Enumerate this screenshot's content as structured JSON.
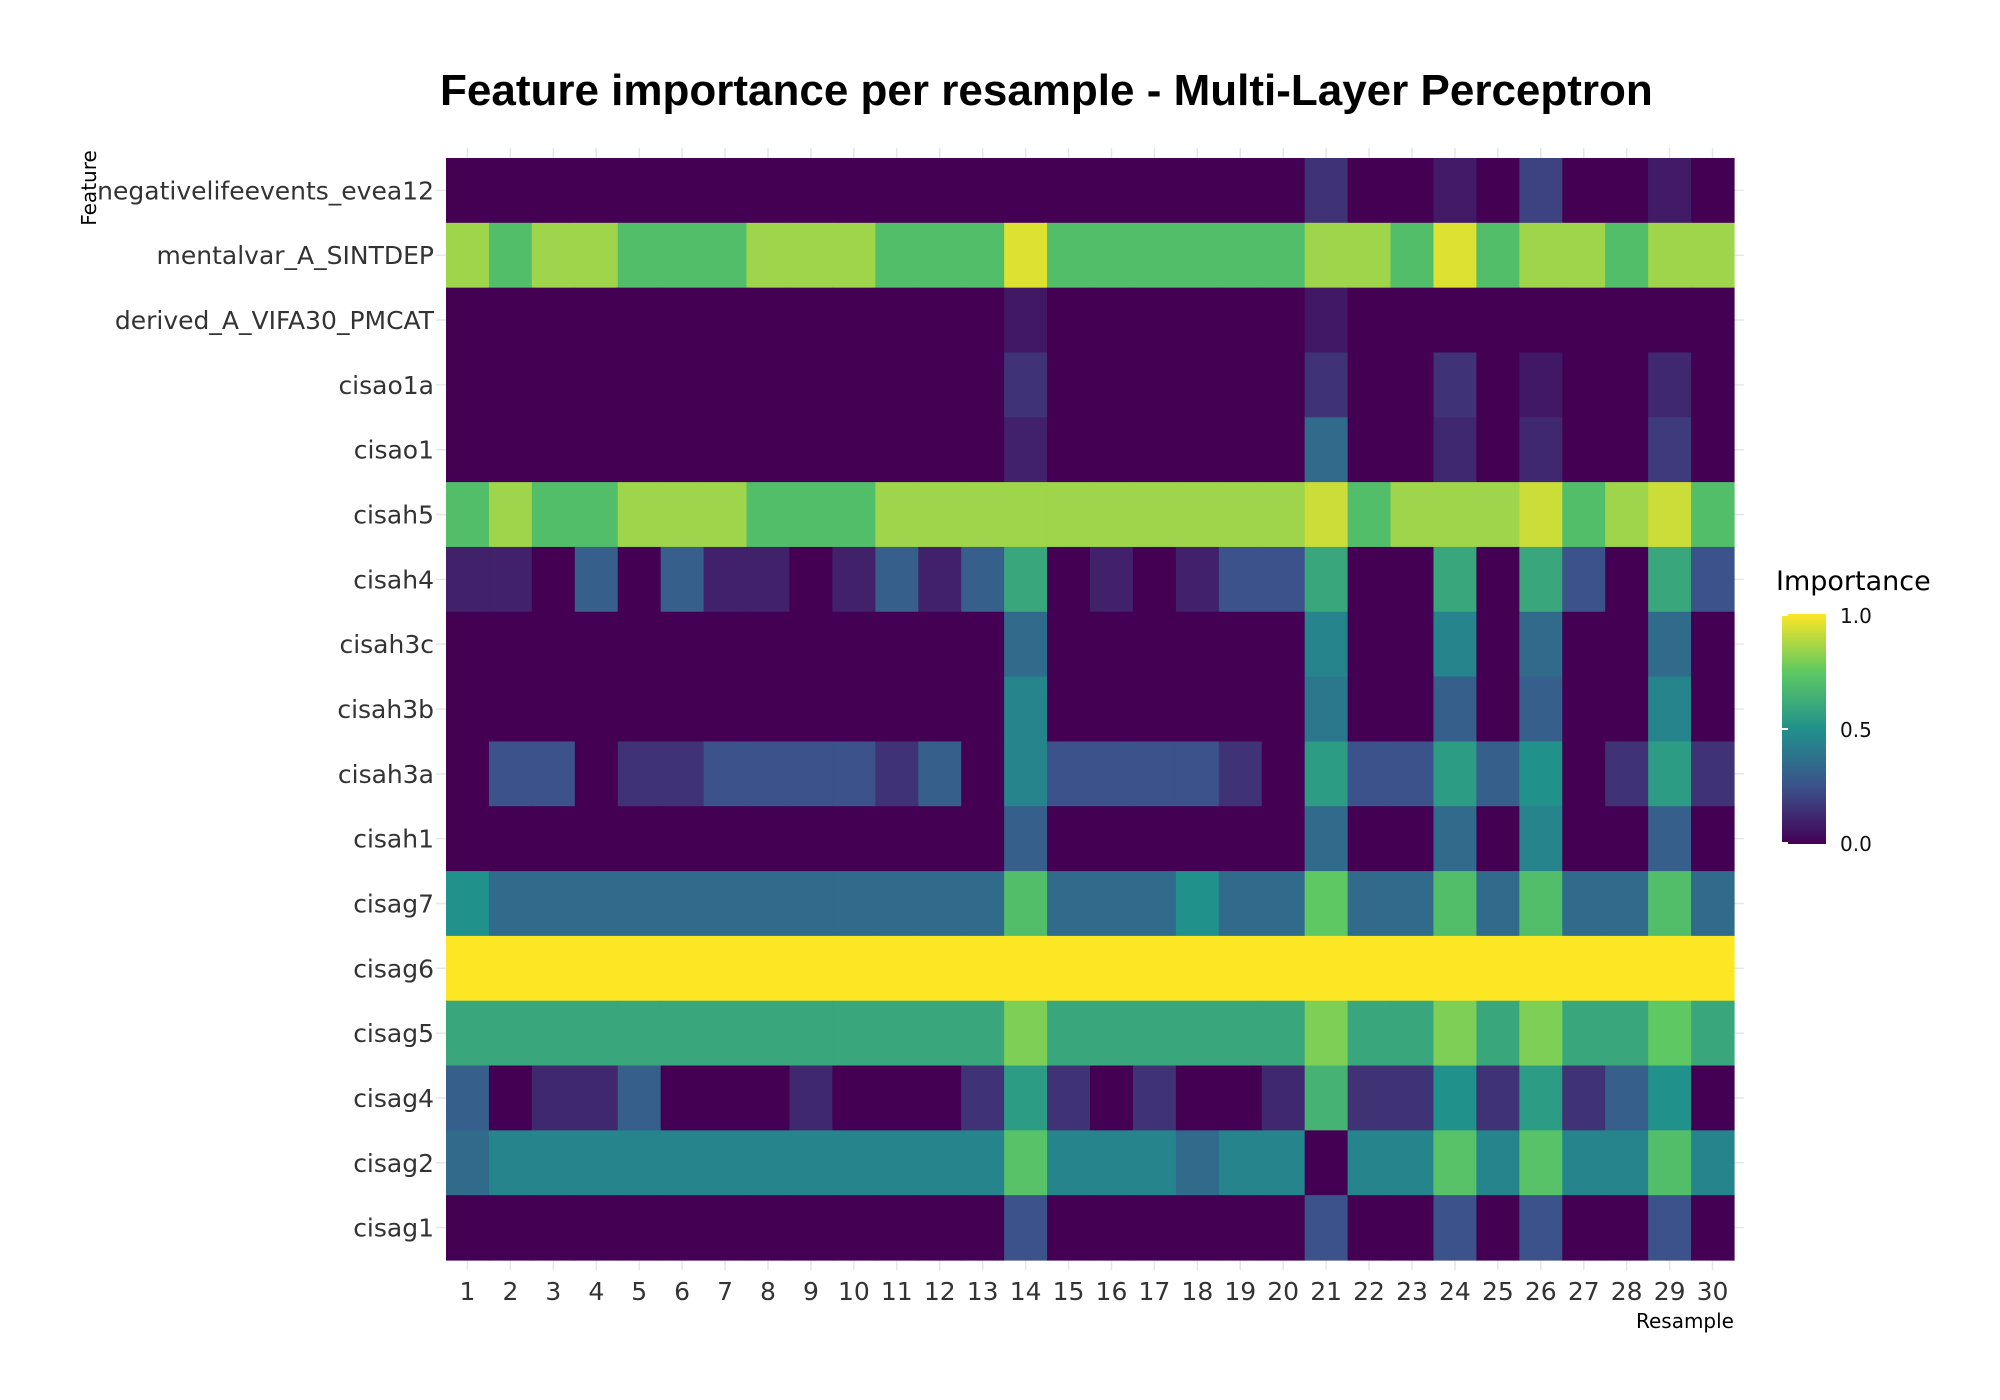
{
  "chart_data": {
    "type": "heatmap",
    "title": "Feature importance per resample - Multi-Layer Perceptron",
    "xlabel": "Resample",
    "ylabel": "Feature",
    "x": [
      "1",
      "2",
      "3",
      "4",
      "5",
      "6",
      "7",
      "8",
      "9",
      "10",
      "11",
      "12",
      "13",
      "14",
      "15",
      "16",
      "17",
      "18",
      "19",
      "20",
      "21",
      "22",
      "23",
      "24",
      "25",
      "26",
      "27",
      "28",
      "29",
      "30"
    ],
    "y": [
      "negativelifeevents_evea12",
      "mentalvar_A_SINTDEP",
      "derived_A_VIFA30_PMCAT",
      "cisao1a",
      "cisao1",
      "cisah5",
      "cisah4",
      "cisah3c",
      "cisah3b",
      "cisah3a",
      "cisah1",
      "cisag7",
      "cisag6",
      "cisag5",
      "cisag4",
      "cisag2",
      "cisag1"
    ],
    "values": [
      [
        0,
        0,
        0,
        0,
        0,
        0,
        0,
        0,
        0,
        0,
        0,
        0,
        0,
        0,
        0,
        0,
        0,
        0,
        0,
        0,
        0.15,
        0,
        0,
        0.08,
        0,
        0.2,
        0,
        0,
        0.08,
        0
      ],
      [
        0.85,
        0.7,
        0.85,
        0.85,
        0.7,
        0.7,
        0.7,
        0.85,
        0.85,
        0.85,
        0.7,
        0.7,
        0.7,
        0.95,
        0.7,
        0.7,
        0.7,
        0.7,
        0.7,
        0.7,
        0.85,
        0.85,
        0.7,
        0.95,
        0.7,
        0.85,
        0.85,
        0.7,
        0.85,
        0.85
      ],
      [
        0,
        0,
        0,
        0,
        0,
        0,
        0,
        0,
        0,
        0,
        0,
        0,
        0,
        0.07,
        0,
        0,
        0,
        0,
        0,
        0,
        0.07,
        0,
        0,
        0,
        0,
        0,
        0,
        0,
        0,
        0
      ],
      [
        0,
        0,
        0,
        0,
        0,
        0,
        0,
        0,
        0,
        0,
        0,
        0,
        0,
        0.15,
        0,
        0,
        0,
        0,
        0,
        0,
        0.15,
        0,
        0,
        0.15,
        0,
        0.07,
        0,
        0,
        0.12,
        0
      ],
      [
        0,
        0,
        0,
        0,
        0,
        0,
        0,
        0,
        0,
        0,
        0,
        0,
        0,
        0.1,
        0,
        0,
        0,
        0,
        0,
        0,
        0.35,
        0,
        0,
        0.12,
        0,
        0.12,
        0,
        0,
        0.18,
        0
      ],
      [
        0.7,
        0.85,
        0.7,
        0.7,
        0.85,
        0.85,
        0.85,
        0.7,
        0.7,
        0.7,
        0.85,
        0.85,
        0.85,
        0.85,
        0.85,
        0.85,
        0.85,
        0.85,
        0.85,
        0.85,
        0.92,
        0.7,
        0.85,
        0.85,
        0.85,
        0.92,
        0.7,
        0.85,
        0.92,
        0.7
      ],
      [
        0.1,
        0.1,
        0,
        0.3,
        0,
        0.3,
        0.1,
        0.1,
        0,
        0.1,
        0.3,
        0.1,
        0.3,
        0.6,
        0,
        0.1,
        0,
        0.1,
        0.25,
        0.25,
        0.6,
        0,
        0,
        0.6,
        0,
        0.6,
        0.25,
        0,
        0.6,
        0.25
      ],
      [
        0,
        0,
        0,
        0,
        0,
        0,
        0,
        0,
        0,
        0,
        0,
        0,
        0,
        0.35,
        0,
        0,
        0,
        0,
        0,
        0,
        0.45,
        0,
        0,
        0.45,
        0,
        0.35,
        0,
        0,
        0.35,
        0
      ],
      [
        0,
        0,
        0,
        0,
        0,
        0,
        0,
        0,
        0,
        0,
        0,
        0,
        0,
        0.45,
        0,
        0,
        0,
        0,
        0,
        0,
        0.4,
        0,
        0,
        0.3,
        0,
        0.3,
        0,
        0,
        0.45,
        0
      ],
      [
        0,
        0.25,
        0.25,
        0,
        0.15,
        0.15,
        0.25,
        0.25,
        0.25,
        0.25,
        0.15,
        0.3,
        0,
        0.45,
        0.25,
        0.25,
        0.25,
        0.25,
        0.15,
        0,
        0.55,
        0.25,
        0.25,
        0.55,
        0.3,
        0.5,
        0,
        0.15,
        0.55,
        0.15
      ],
      [
        0,
        0,
        0,
        0,
        0,
        0,
        0,
        0,
        0,
        0,
        0,
        0,
        0,
        0.3,
        0,
        0,
        0,
        0,
        0,
        0,
        0.35,
        0,
        0,
        0.35,
        0,
        0.45,
        0,
        0,
        0.3,
        0
      ],
      [
        0.5,
        0.35,
        0.35,
        0.35,
        0.35,
        0.35,
        0.35,
        0.35,
        0.35,
        0.35,
        0.35,
        0.35,
        0.35,
        0.7,
        0.35,
        0.35,
        0.35,
        0.5,
        0.35,
        0.35,
        0.75,
        0.35,
        0.35,
        0.7,
        0.35,
        0.7,
        0.35,
        0.35,
        0.7,
        0.35
      ],
      [
        1,
        1,
        1,
        1,
        1,
        1,
        1,
        1,
        1,
        1,
        1,
        1,
        1,
        1,
        1,
        1,
        1,
        1,
        1,
        1,
        1,
        1,
        1,
        1,
        1,
        1,
        1,
        1,
        1,
        1
      ],
      [
        0.6,
        0.6,
        0.6,
        0.6,
        0.6,
        0.6,
        0.6,
        0.6,
        0.6,
        0.6,
        0.6,
        0.6,
        0.6,
        0.8,
        0.6,
        0.6,
        0.6,
        0.6,
        0.6,
        0.6,
        0.8,
        0.6,
        0.6,
        0.8,
        0.6,
        0.8,
        0.6,
        0.6,
        0.75,
        0.6
      ],
      [
        0.3,
        0,
        0.12,
        0.12,
        0.3,
        0,
        0,
        0,
        0.12,
        0,
        0,
        0,
        0.15,
        0.55,
        0.15,
        0,
        0.15,
        0,
        0,
        0.12,
        0.65,
        0.15,
        0.15,
        0.5,
        0.15,
        0.55,
        0.15,
        0.3,
        0.5,
        0
      ],
      [
        0.35,
        0.45,
        0.45,
        0.45,
        0.45,
        0.45,
        0.45,
        0.45,
        0.45,
        0.45,
        0.45,
        0.45,
        0.45,
        0.72,
        0.45,
        0.45,
        0.45,
        0.35,
        0.45,
        0.45,
        0,
        0.45,
        0.45,
        0.72,
        0.45,
        0.72,
        0.45,
        0.45,
        0.7,
        0.45
      ],
      [
        0,
        0,
        0,
        0,
        0,
        0,
        0,
        0,
        0,
        0,
        0,
        0,
        0,
        0.25,
        0,
        0,
        0,
        0,
        0,
        0,
        0.25,
        0,
        0,
        0.25,
        0,
        0.25,
        0,
        0,
        0.25,
        0
      ]
    ],
    "zlim": [
      0,
      1
    ],
    "legend": {
      "title": "Importance",
      "ticks": [
        "0.0",
        "0.5",
        "1.0"
      ],
      "placement": "right"
    },
    "colormap": [
      "#440154",
      "#3b528b",
      "#21918c",
      "#5ec962",
      "#fde725"
    ],
    "grid": true
  }
}
